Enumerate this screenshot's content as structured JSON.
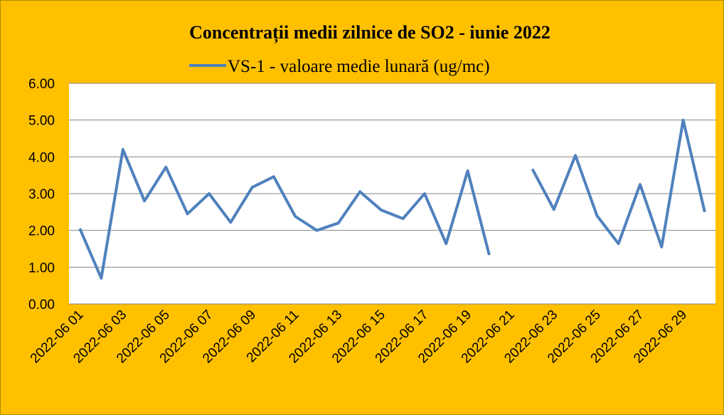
{
  "chart_data": {
    "type": "line",
    "title": "Concentrații  medii zilnice de SO2 - iunie 2022",
    "categories": [
      "2022-06 01",
      null,
      "2022-06 03",
      null,
      "2022-06 05",
      null,
      "2022-06 07",
      null,
      "2022-06 09",
      null,
      "2022-06 11",
      null,
      "2022-06 13",
      null,
      "2022-06 15",
      null,
      "2022-06 17",
      null,
      "2022-06 19",
      null,
      "2022-06 21",
      null,
      "2022-06 23",
      null,
      "2022-06 25",
      null,
      "2022-06 27",
      null,
      "2022-06 29",
      null
    ],
    "series": [
      {
        "name": "VS-1 - valoare medie lunară (ug/mc)",
        "color": "#4f81bd",
        "values": [
          2.05,
          0.7,
          4.2,
          2.8,
          3.72,
          2.45,
          3.0,
          2.22,
          3.17,
          3.46,
          2.38,
          2.0,
          2.2,
          3.05,
          2.55,
          2.32,
          3.0,
          1.64,
          3.62,
          1.33,
          null,
          3.67,
          2.57,
          4.04,
          2.4,
          1.64,
          3.25,
          1.55,
          5.0,
          2.5
        ]
      }
    ],
    "ylim": [
      0,
      6
    ],
    "yticks": [
      {
        "value": 0,
        "label": "0.00"
      },
      {
        "value": 1,
        "label": "1.00"
      },
      {
        "value": 2,
        "label": "2.00"
      },
      {
        "value": 3,
        "label": "3.00"
      },
      {
        "value": 4,
        "label": "4.00"
      },
      {
        "value": 5,
        "label": "5.00"
      },
      {
        "value": 6,
        "label": "6.00"
      }
    ],
    "grid": true,
    "legend": "top"
  }
}
